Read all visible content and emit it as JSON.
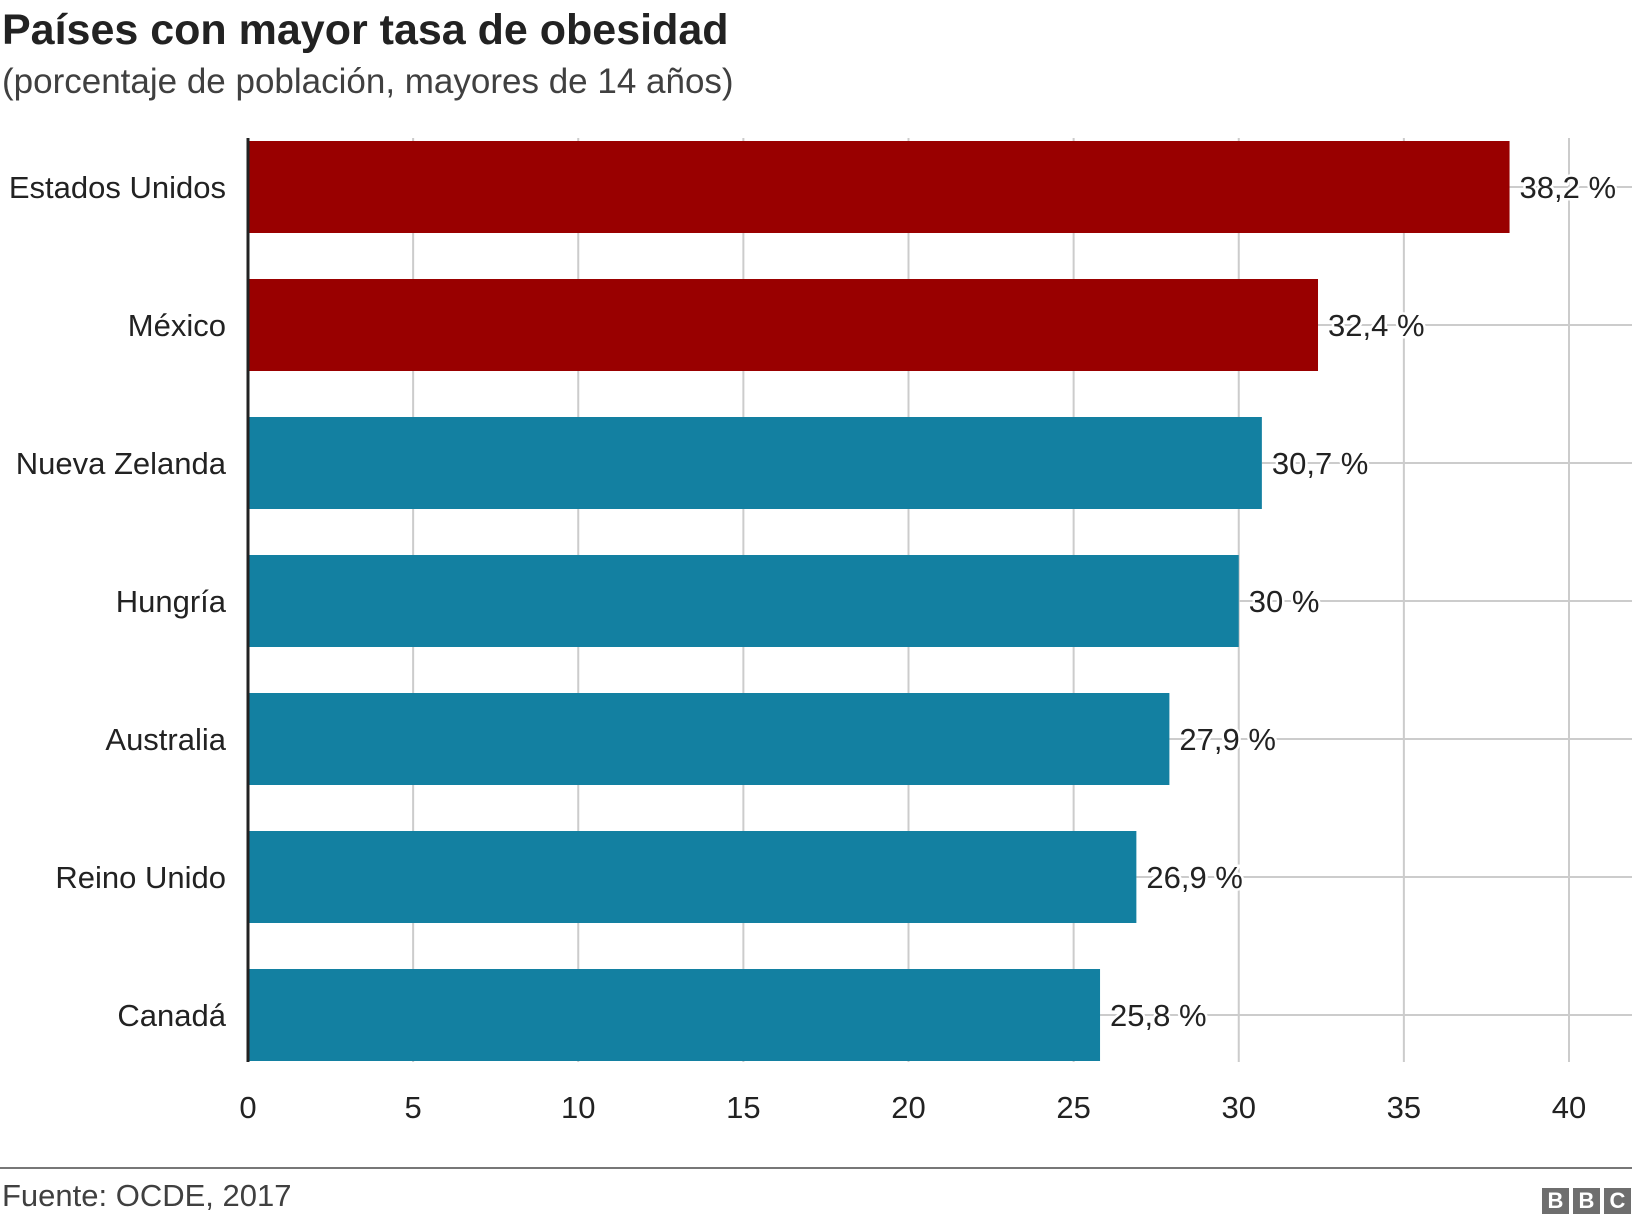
{
  "chart_data": {
    "type": "bar",
    "orientation": "horizontal",
    "title": "Países con mayor tasa de obesidad",
    "subtitle": "(porcentaje de población, mayores de 14 años)",
    "categories": [
      "Estados Unidos",
      "México",
      "Nueva Zelanda",
      "Hungría",
      "Australia",
      "Reino Unido",
      "Canadá"
    ],
    "values": [
      38.2,
      32.4,
      30.7,
      30,
      27.9,
      26.9,
      25.8
    ],
    "data_labels": [
      "38,2 %",
      "32,4 %",
      "30,7 %",
      "30 %",
      "27,9 %",
      "26,9 %",
      "25,8 %"
    ],
    "bar_colors": [
      "#990000",
      "#990000",
      "#1380A1",
      "#1380A1",
      "#1380A1",
      "#1380A1",
      "#1380A1"
    ],
    "xlim": [
      0,
      40
    ],
    "x_ticks": [
      "0",
      "5",
      "10",
      "15",
      "20",
      "25",
      "30",
      "35",
      "40"
    ],
    "grid": true,
    "xlabel": "",
    "ylabel": ""
  },
  "footer": {
    "source": "Fuente: OCDE, 2017",
    "logo": "BBC"
  }
}
